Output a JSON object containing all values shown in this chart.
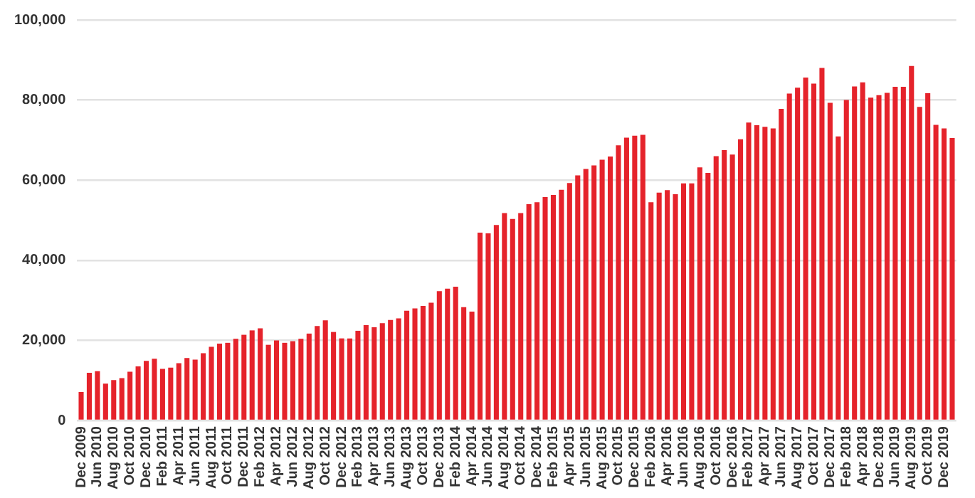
{
  "chart_data": {
    "type": "bar",
    "categories": [
      "Dec 2009",
      null,
      "Jun 2010",
      null,
      "Aug 2010",
      null,
      "Oct 2010",
      null,
      "Dec 2010",
      null,
      "Feb 2011",
      null,
      "Apr 2011",
      null,
      "Jun 2011",
      null,
      "Aug 2011",
      null,
      "Oct 2011",
      null,
      "Dec 2011",
      null,
      "Feb 2012",
      null,
      "Apr 2012",
      null,
      "Jun 2012",
      null,
      "Aug 2012",
      null,
      "Oct 2012",
      null,
      "Dec 2012",
      null,
      "Feb 2013",
      null,
      "Apr 2013",
      null,
      "Jun 2013",
      null,
      "Aug 2013",
      null,
      "Oct 2013",
      null,
      "Dec 2013",
      null,
      "Feb 2014",
      null,
      "Apr 2014",
      null,
      "Jun 2014",
      null,
      "Aug 2014",
      null,
      "Oct 2014",
      null,
      "Dec 2014",
      null,
      "Feb 2015",
      null,
      "Apr 2015",
      null,
      "Jun 2015",
      null,
      "Aug 2015",
      null,
      "Oct 2015",
      null,
      "Dec 2015",
      null,
      "Feb 2016",
      null,
      "Apr 2016",
      null,
      "Jun 2016",
      null,
      "Aug 2016",
      null,
      "Oct 2016",
      null,
      "Dec 2016",
      null,
      "Feb 2017",
      null,
      "Apr 2017",
      null,
      "Jun 2017",
      null,
      "Aug 2017",
      null,
      "Oct 2017",
      null,
      "Dec 2017",
      null,
      "Feb 2018",
      null,
      "Apr 2018",
      null,
      "Dec 2018",
      null,
      "Jun 2019",
      null,
      "Aug 2019",
      null,
      "Oct 2019",
      null,
      "Dec 2019",
      null
    ],
    "values": [
      7100,
      11900,
      12300,
      9200,
      10100,
      10600,
      12200,
      13500,
      14900,
      15400,
      12900,
      13200,
      14300,
      15600,
      15200,
      16800,
      18400,
      19200,
      19400,
      20400,
      21400,
      22500,
      23000,
      18900,
      20000,
      19400,
      19800,
      20400,
      21700,
      23600,
      25000,
      22100,
      20500,
      20500,
      22400,
      23800,
      23300,
      24300,
      25100,
      25500,
      27400,
      28000,
      28600,
      29400,
      32300,
      32900,
      33400,
      28300,
      27200,
      46900,
      46700,
      48800,
      51800,
      50300,
      51800,
      54000,
      54500,
      55800,
      56300,
      57600,
      59300,
      61200,
      62800,
      63700,
      65100,
      65900,
      68700,
      70600,
      71100,
      71300,
      54500,
      56900,
      57500,
      56500,
      59200,
      59200,
      63200,
      61800,
      66000,
      67500,
      66400,
      70200,
      74400,
      73700,
      73300,
      72900,
      77800,
      81600,
      83100,
      85600,
      84100,
      88000,
      79300,
      70900,
      80000,
      83400,
      84400,
      80600,
      81200,
      81800,
      83300,
      83300,
      88500,
      78300,
      81700,
      73800,
      72900,
      70500
    ],
    "color": "#e5232b",
    "ylim": [
      0,
      100000
    ],
    "yticks": [
      0,
      {
        "value": 20000,
        "label": "20,000"
      },
      {
        "value": 40000,
        "label": "40,000"
      },
      {
        "value": 60000,
        "label": "60,000"
      },
      {
        "value": 80000,
        "label": "80,000"
      },
      {
        "value": 100000,
        "label": "100,000"
      }
    ],
    "grid": "y"
  }
}
